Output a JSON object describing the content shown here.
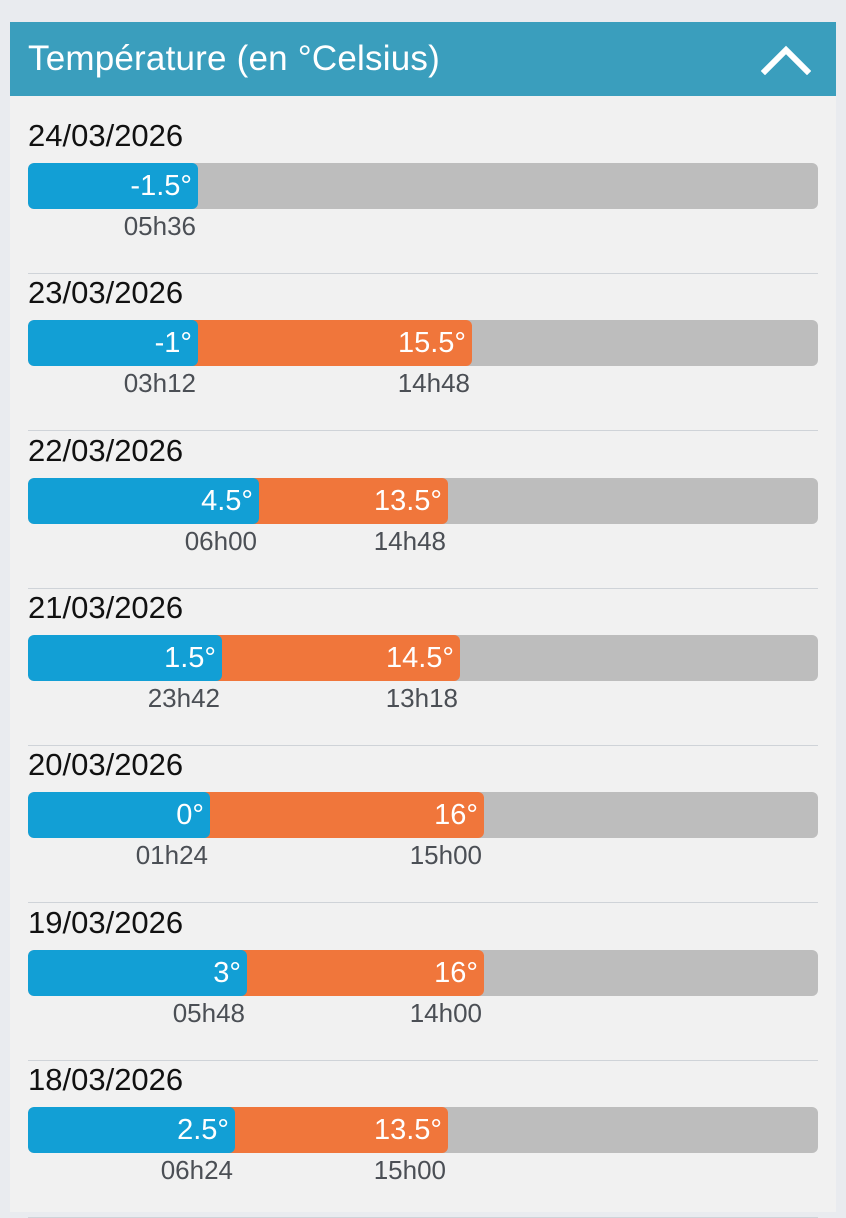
{
  "header": {
    "title": "Température (en °Celsius)",
    "toggle_icon": "chevron-up-icon"
  },
  "colors": {
    "header": "#3a9ebd",
    "min_bar": "#129fd5",
    "max_bar": "#f0763b",
    "track": "#bdbdbd"
  },
  "days": [
    {
      "date": "24/03/2026",
      "min_label": "-1.5°",
      "min_time": "05h36",
      "min_fraction": 0.215
    },
    {
      "date": "23/03/2026",
      "min_label": "-1°",
      "min_time": "03h12",
      "min_fraction": 0.215,
      "max_label": "15.5°",
      "max_time": "14h48",
      "max_fraction": 0.562
    },
    {
      "date": "22/03/2026",
      "min_label": "4.5°",
      "min_time": "06h00",
      "min_fraction": 0.292,
      "max_label": "13.5°",
      "max_time": "14h48",
      "max_fraction": 0.532
    },
    {
      "date": "21/03/2026",
      "min_label": "1.5°",
      "min_time": "23h42",
      "min_fraction": 0.246,
      "max_label": "14.5°",
      "max_time": "13h18",
      "max_fraction": 0.547
    },
    {
      "date": "20/03/2026",
      "min_label": "0°",
      "min_time": "01h24",
      "min_fraction": 0.231,
      "max_label": "16°",
      "max_time": "15h00",
      "max_fraction": 0.577
    },
    {
      "date": "19/03/2026",
      "min_label": "3°",
      "min_time": "05h48",
      "min_fraction": 0.277,
      "max_label": "16°",
      "max_time": "14h00",
      "max_fraction": 0.577
    },
    {
      "date": "18/03/2026",
      "min_label": "2.5°",
      "min_time": "06h24",
      "min_fraction": 0.262,
      "max_label": "13.5°",
      "max_time": "15h00",
      "max_fraction": 0.532
    }
  ]
}
